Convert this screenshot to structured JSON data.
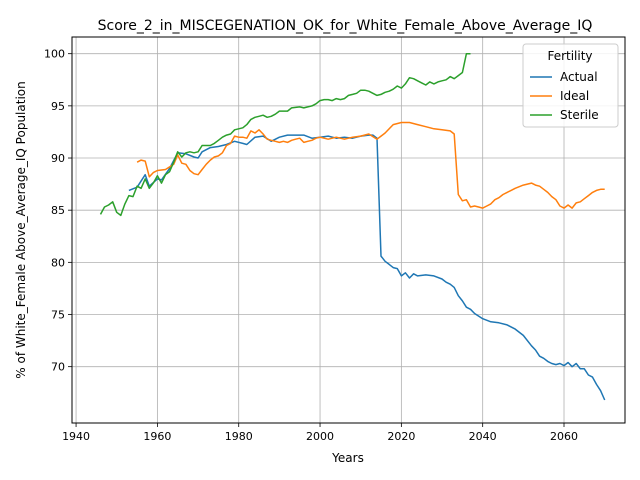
{
  "chart_data": {
    "type": "line",
    "title": "Score_2_in_MISCEGENATION_OK_for_White_Female_Above_Average_IQ",
    "xlabel": "Years",
    "ylabel": "% of White_Female Above_Average_IQ Population",
    "xlim": [
      1939,
      2075
    ],
    "ylim": [
      64.6,
      101.6
    ],
    "xticks": [
      1940,
      1960,
      1980,
      2000,
      2020,
      2040,
      2060
    ],
    "yticks": [
      70,
      75,
      80,
      85,
      90,
      95,
      100
    ],
    "grid": true,
    "legend": {
      "title": "Fertility",
      "placement": "top-right"
    },
    "series": [
      {
        "name": "Actual",
        "color": "#1f77b4",
        "points": [
          [
            1953,
            86.9
          ],
          [
            1955,
            87.2
          ],
          [
            1957,
            88.4
          ],
          [
            1958,
            87.3
          ],
          [
            1960,
            88.0
          ],
          [
            1961,
            87.9
          ],
          [
            1963,
            89.0
          ],
          [
            1965,
            90.5
          ],
          [
            1967,
            90.4
          ],
          [
            1969,
            90.1
          ],
          [
            1970,
            90.0
          ],
          [
            1971,
            90.6
          ],
          [
            1973,
            91.0
          ],
          [
            1975,
            91.1
          ],
          [
            1977,
            91.3
          ],
          [
            1979,
            91.6
          ],
          [
            1981,
            91.4
          ],
          [
            1982,
            91.3
          ],
          [
            1984,
            92.0
          ],
          [
            1986,
            92.1
          ],
          [
            1988,
            91.6
          ],
          [
            1990,
            92.0
          ],
          [
            1992,
            92.2
          ],
          [
            1994,
            92.2
          ],
          [
            1996,
            92.2
          ],
          [
            1998,
            91.9
          ],
          [
            2000,
            92.0
          ],
          [
            2002,
            92.1
          ],
          [
            2004,
            91.9
          ],
          [
            2006,
            92.0
          ],
          [
            2008,
            91.9
          ],
          [
            2010,
            92.1
          ],
          [
            2012,
            92.2
          ],
          [
            2013,
            92.2
          ],
          [
            2014,
            91.9
          ],
          [
            2015,
            80.6
          ],
          [
            2016,
            80.1
          ],
          [
            2017,
            79.8
          ],
          [
            2018,
            79.5
          ],
          [
            2019,
            79.4
          ],
          [
            2020,
            78.7
          ],
          [
            2021,
            79.0
          ],
          [
            2022,
            78.5
          ],
          [
            2023,
            78.9
          ],
          [
            2024,
            78.7
          ],
          [
            2026,
            78.8
          ],
          [
            2028,
            78.7
          ],
          [
            2030,
            78.4
          ],
          [
            2031,
            78.1
          ],
          [
            2032,
            77.9
          ],
          [
            2033,
            77.6
          ],
          [
            2034,
            76.8
          ],
          [
            2035,
            76.3
          ],
          [
            2036,
            75.7
          ],
          [
            2037,
            75.5
          ],
          [
            2038,
            75.1
          ],
          [
            2040,
            74.6
          ],
          [
            2042,
            74.3
          ],
          [
            2044,
            74.2
          ],
          [
            2046,
            74.0
          ],
          [
            2048,
            73.6
          ],
          [
            2050,
            73.0
          ],
          [
            2052,
            72.0
          ],
          [
            2053,
            71.6
          ],
          [
            2054,
            71.0
          ],
          [
            2055,
            70.8
          ],
          [
            2056,
            70.5
          ],
          [
            2057,
            70.3
          ],
          [
            2058,
            70.2
          ],
          [
            2059,
            70.3
          ],
          [
            2060,
            70.1
          ],
          [
            2061,
            70.4
          ],
          [
            2062,
            70.0
          ],
          [
            2063,
            70.3
          ],
          [
            2064,
            69.8
          ],
          [
            2065,
            69.8
          ],
          [
            2066,
            69.2
          ],
          [
            2067,
            69.0
          ],
          [
            2068,
            68.3
          ],
          [
            2069,
            67.7
          ],
          [
            2070,
            66.8
          ]
        ]
      },
      {
        "name": "Ideal",
        "color": "#ff7f0e",
        "points": [
          [
            1955,
            89.6
          ],
          [
            1956,
            89.8
          ],
          [
            1957,
            89.7
          ],
          [
            1958,
            88.2
          ],
          [
            1959,
            88.6
          ],
          [
            1960,
            88.8
          ],
          [
            1962,
            88.9
          ],
          [
            1964,
            89.4
          ],
          [
            1965,
            90.3
          ],
          [
            1966,
            89.5
          ],
          [
            1967,
            89.4
          ],
          [
            1968,
            88.8
          ],
          [
            1969,
            88.5
          ],
          [
            1970,
            88.4
          ],
          [
            1971,
            88.9
          ],
          [
            1972,
            89.4
          ],
          [
            1973,
            89.8
          ],
          [
            1974,
            90.1
          ],
          [
            1975,
            90.2
          ],
          [
            1976,
            90.5
          ],
          [
            1977,
            91.2
          ],
          [
            1978,
            91.4
          ],
          [
            1979,
            92.1
          ],
          [
            1980,
            92.0
          ],
          [
            1981,
            92.0
          ],
          [
            1982,
            91.9
          ],
          [
            1983,
            92.6
          ],
          [
            1984,
            92.4
          ],
          [
            1985,
            92.7
          ],
          [
            1986,
            92.3
          ],
          [
            1987,
            91.8
          ],
          [
            1988,
            91.7
          ],
          [
            1989,
            91.6
          ],
          [
            1990,
            91.5
          ],
          [
            1991,
            91.6
          ],
          [
            1992,
            91.5
          ],
          [
            1993,
            91.7
          ],
          [
            1994,
            91.8
          ],
          [
            1995,
            91.9
          ],
          [
            1996,
            91.5
          ],
          [
            1997,
            91.6
          ],
          [
            1998,
            91.7
          ],
          [
            1999,
            91.9
          ],
          [
            2000,
            92.0
          ],
          [
            2002,
            91.8
          ],
          [
            2004,
            92.0
          ],
          [
            2006,
            91.8
          ],
          [
            2008,
            92.0
          ],
          [
            2010,
            92.1
          ],
          [
            2012,
            92.3
          ],
          [
            2014,
            91.8
          ],
          [
            2016,
            92.4
          ],
          [
            2018,
            93.2
          ],
          [
            2020,
            93.4
          ],
          [
            2022,
            93.4
          ],
          [
            2024,
            93.2
          ],
          [
            2026,
            93.0
          ],
          [
            2028,
            92.8
          ],
          [
            2030,
            92.7
          ],
          [
            2032,
            92.6
          ],
          [
            2033,
            92.3
          ],
          [
            2034,
            86.5
          ],
          [
            2035,
            85.9
          ],
          [
            2036,
            86.0
          ],
          [
            2037,
            85.3
          ],
          [
            2038,
            85.4
          ],
          [
            2039,
            85.3
          ],
          [
            2040,
            85.2
          ],
          [
            2041,
            85.4
          ],
          [
            2042,
            85.6
          ],
          [
            2043,
            86.0
          ],
          [
            2044,
            86.2
          ],
          [
            2045,
            86.5
          ],
          [
            2046,
            86.7
          ],
          [
            2047,
            86.9
          ],
          [
            2048,
            87.1
          ],
          [
            2050,
            87.4
          ],
          [
            2052,
            87.6
          ],
          [
            2053,
            87.4
          ],
          [
            2054,
            87.3
          ],
          [
            2055,
            87.0
          ],
          [
            2056,
            86.7
          ],
          [
            2057,
            86.3
          ],
          [
            2058,
            86.0
          ],
          [
            2059,
            85.4
          ],
          [
            2060,
            85.2
          ],
          [
            2061,
            85.5
          ],
          [
            2062,
            85.2
          ],
          [
            2063,
            85.7
          ],
          [
            2064,
            85.8
          ],
          [
            2065,
            86.1
          ],
          [
            2066,
            86.4
          ],
          [
            2067,
            86.7
          ],
          [
            2068,
            86.9
          ],
          [
            2069,
            87.0
          ],
          [
            2070,
            87.0
          ]
        ]
      },
      {
        "name": "Sterile",
        "color": "#2ca02c",
        "points": [
          [
            1946,
            84.6
          ],
          [
            1947,
            85.3
          ],
          [
            1948,
            85.5
          ],
          [
            1949,
            85.8
          ],
          [
            1950,
            84.8
          ],
          [
            1951,
            84.5
          ],
          [
            1952,
            85.6
          ],
          [
            1953,
            86.4
          ],
          [
            1954,
            86.3
          ],
          [
            1955,
            87.3
          ],
          [
            1956,
            87.1
          ],
          [
            1957,
            88.0
          ],
          [
            1958,
            87.1
          ],
          [
            1959,
            87.6
          ],
          [
            1960,
            88.3
          ],
          [
            1961,
            87.6
          ],
          [
            1962,
            88.4
          ],
          [
            1963,
            88.7
          ],
          [
            1964,
            89.6
          ],
          [
            1965,
            90.6
          ],
          [
            1966,
            90.1
          ],
          [
            1967,
            90.5
          ],
          [
            1968,
            90.6
          ],
          [
            1969,
            90.5
          ],
          [
            1970,
            90.6
          ],
          [
            1971,
            91.2
          ],
          [
            1972,
            91.2
          ],
          [
            1973,
            91.2
          ],
          [
            1974,
            91.4
          ],
          [
            1975,
            91.7
          ],
          [
            1976,
            92.0
          ],
          [
            1977,
            92.2
          ],
          [
            1978,
            92.3
          ],
          [
            1979,
            92.7
          ],
          [
            1980,
            92.8
          ],
          [
            1981,
            92.9
          ],
          [
            1982,
            93.2
          ],
          [
            1983,
            93.7
          ],
          [
            1984,
            93.9
          ],
          [
            1985,
            94.0
          ],
          [
            1986,
            94.1
          ],
          [
            1987,
            93.9
          ],
          [
            1988,
            94.0
          ],
          [
            1989,
            94.2
          ],
          [
            1990,
            94.5
          ],
          [
            1992,
            94.5
          ],
          [
            1993,
            94.8
          ],
          [
            1995,
            94.9
          ],
          [
            1996,
            94.8
          ],
          [
            1997,
            94.9
          ],
          [
            1998,
            95.0
          ],
          [
            1999,
            95.2
          ],
          [
            2000,
            95.5
          ],
          [
            2001,
            95.6
          ],
          [
            2002,
            95.6
          ],
          [
            2003,
            95.5
          ],
          [
            2004,
            95.7
          ],
          [
            2005,
            95.6
          ],
          [
            2006,
            95.7
          ],
          [
            2007,
            96.0
          ],
          [
            2008,
            96.1
          ],
          [
            2009,
            96.2
          ],
          [
            2010,
            96.5
          ],
          [
            2011,
            96.5
          ],
          [
            2012,
            96.4
          ],
          [
            2013,
            96.2
          ],
          [
            2014,
            96.0
          ],
          [
            2015,
            96.1
          ],
          [
            2016,
            96.3
          ],
          [
            2017,
            96.4
          ],
          [
            2018,
            96.6
          ],
          [
            2019,
            96.9
          ],
          [
            2020,
            96.7
          ],
          [
            2021,
            97.1
          ],
          [
            2022,
            97.7
          ],
          [
            2023,
            97.6
          ],
          [
            2024,
            97.4
          ],
          [
            2025,
            97.2
          ],
          [
            2026,
            97.0
          ],
          [
            2027,
            97.3
          ],
          [
            2028,
            97.1
          ],
          [
            2029,
            97.3
          ],
          [
            2030,
            97.4
          ],
          [
            2031,
            97.5
          ],
          [
            2032,
            97.8
          ],
          [
            2033,
            97.6
          ],
          [
            2034,
            97.9
          ],
          [
            2035,
            98.2
          ],
          [
            2036,
            100.0
          ],
          [
            2037,
            100.0
          ]
        ]
      }
    ]
  }
}
